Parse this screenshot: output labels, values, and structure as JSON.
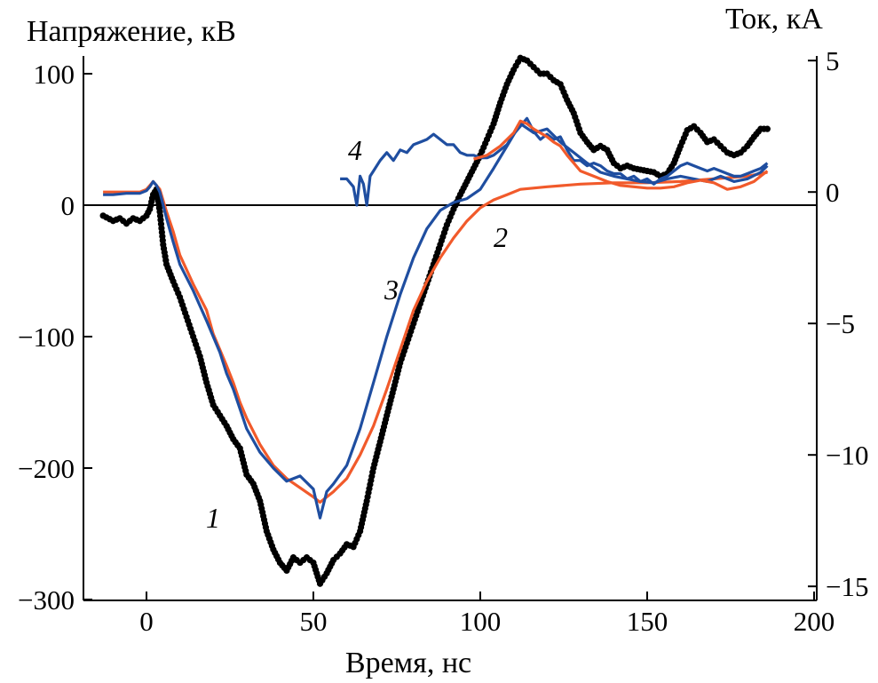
{
  "chart_data": {
    "type": "line",
    "xlabel": "Время, нс",
    "ylabel_left": "Напряжение, кВ",
    "ylabel_right": "Ток, кА",
    "x_ticks": [
      "0",
      "50",
      "100",
      "150",
      "200"
    ],
    "y_left_ticks": [
      "100",
      "0",
      "−100",
      "−200",
      "−300"
    ],
    "y_right_ticks": [
      "5",
      "0",
      "−5",
      "−10",
      "−15"
    ],
    "xlim": [
      -18,
      200
    ],
    "ylim_left": [
      -300,
      110
    ],
    "ylim_right": [
      -15,
      5
    ],
    "right_axis_mapping": {
      "left_at_right_zero": 10,
      "left_per_right_unit": 20
    },
    "zero_line": 0,
    "grid": false,
    "series": [
      {
        "label": "1",
        "axis": "left",
        "color": "#000000",
        "style": "dots",
        "points": [
          [
            -13,
            -8
          ],
          [
            -10,
            -12
          ],
          [
            -8,
            -10
          ],
          [
            -6,
            -14
          ],
          [
            -4,
            -10
          ],
          [
            -2,
            -12
          ],
          [
            0,
            -8
          ],
          [
            1,
            -3
          ],
          [
            2,
            8
          ],
          [
            3,
            12
          ],
          [
            4,
            -5
          ],
          [
            5,
            -30
          ],
          [
            6,
            -45
          ],
          [
            8,
            -58
          ],
          [
            10,
            -70
          ],
          [
            12,
            -85
          ],
          [
            14,
            -100
          ],
          [
            16,
            -115
          ],
          [
            18,
            -135
          ],
          [
            20,
            -152
          ],
          [
            22,
            -160
          ],
          [
            24,
            -168
          ],
          [
            26,
            -178
          ],
          [
            28,
            -185
          ],
          [
            30,
            -205
          ],
          [
            32,
            -212
          ],
          [
            34,
            -225
          ],
          [
            36,
            -248
          ],
          [
            38,
            -262
          ],
          [
            40,
            -272
          ],
          [
            42,
            -278
          ],
          [
            44,
            -268
          ],
          [
            46,
            -272
          ],
          [
            48,
            -268
          ],
          [
            50,
            -272
          ],
          [
            52,
            -288
          ],
          [
            54,
            -280
          ],
          [
            56,
            -270
          ],
          [
            58,
            -265
          ],
          [
            60,
            -258
          ],
          [
            62,
            -260
          ],
          [
            64,
            -248
          ],
          [
            66,
            -225
          ],
          [
            68,
            -200
          ],
          [
            70,
            -180
          ],
          [
            72,
            -160
          ],
          [
            74,
            -140
          ],
          [
            76,
            -120
          ],
          [
            78,
            -105
          ],
          [
            80,
            -90
          ],
          [
            82,
            -75
          ],
          [
            84,
            -60
          ],
          [
            86,
            -45
          ],
          [
            88,
            -30
          ],
          [
            90,
            -15
          ],
          [
            92,
            -3
          ],
          [
            94,
            8
          ],
          [
            96,
            18
          ],
          [
            98,
            28
          ],
          [
            100,
            38
          ],
          [
            102,
            50
          ],
          [
            104,
            62
          ],
          [
            106,
            78
          ],
          [
            108,
            92
          ],
          [
            110,
            103
          ],
          [
            112,
            112
          ],
          [
            114,
            110
          ],
          [
            116,
            105
          ],
          [
            118,
            100
          ],
          [
            120,
            100
          ],
          [
            122,
            95
          ],
          [
            124,
            92
          ],
          [
            126,
            80
          ],
          [
            128,
            70
          ],
          [
            130,
            55
          ],
          [
            132,
            48
          ],
          [
            134,
            42
          ],
          [
            136,
            45
          ],
          [
            138,
            42
          ],
          [
            140,
            32
          ],
          [
            142,
            28
          ],
          [
            144,
            30
          ],
          [
            146,
            28
          ],
          [
            148,
            27
          ],
          [
            150,
            26
          ],
          [
            152,
            25
          ],
          [
            154,
            22
          ],
          [
            156,
            24
          ],
          [
            158,
            32
          ],
          [
            160,
            45
          ],
          [
            162,
            57
          ],
          [
            164,
            60
          ],
          [
            166,
            55
          ],
          [
            168,
            48
          ],
          [
            170,
            50
          ],
          [
            172,
            45
          ],
          [
            174,
            40
          ],
          [
            176,
            38
          ],
          [
            178,
            40
          ],
          [
            180,
            45
          ],
          [
            182,
            52
          ],
          [
            184,
            58
          ],
          [
            186,
            58
          ]
        ]
      },
      {
        "label": "2",
        "axis": "left",
        "color": "#f15a2b",
        "style": "line",
        "points": [
          [
            -13,
            10
          ],
          [
            -10,
            10
          ],
          [
            -6,
            10
          ],
          [
            -2,
            10
          ],
          [
            0,
            12
          ],
          [
            1,
            15
          ],
          [
            2,
            18
          ],
          [
            3,
            15
          ],
          [
            4,
            12
          ],
          [
            6,
            -5
          ],
          [
            8,
            -20
          ],
          [
            10,
            -38
          ],
          [
            14,
            -60
          ],
          [
            18,
            -80
          ],
          [
            20,
            -98
          ],
          [
            22,
            -110
          ],
          [
            24,
            -122
          ],
          [
            26,
            -135
          ],
          [
            28,
            -150
          ],
          [
            30,
            -162
          ],
          [
            34,
            -182
          ],
          [
            38,
            -198
          ],
          [
            42,
            -208
          ],
          [
            46,
            -215
          ],
          [
            50,
            -222
          ],
          [
            52,
            -226
          ],
          [
            56,
            -218
          ],
          [
            60,
            -208
          ],
          [
            64,
            -190
          ],
          [
            68,
            -168
          ],
          [
            72,
            -140
          ],
          [
            76,
            -110
          ],
          [
            80,
            -80
          ],
          [
            84,
            -58
          ],
          [
            88,
            -40
          ],
          [
            92,
            -25
          ],
          [
            96,
            -12
          ],
          [
            100,
            -2
          ],
          [
            104,
            4
          ],
          [
            108,
            8
          ],
          [
            112,
            12
          ],
          [
            120,
            14
          ],
          [
            130,
            16
          ],
          [
            140,
            17
          ],
          [
            150,
            17
          ],
          [
            160,
            18
          ],
          [
            170,
            20
          ],
          [
            180,
            22
          ],
          [
            186,
            25
          ]
        ]
      },
      {
        "label": "3",
        "axis": "left",
        "color": "#1f4ea0",
        "style": "line",
        "points": [
          [
            -13,
            8
          ],
          [
            -10,
            8
          ],
          [
            -6,
            9
          ],
          [
            -2,
            9
          ],
          [
            0,
            11
          ],
          [
            1,
            14
          ],
          [
            2,
            18
          ],
          [
            3,
            15
          ],
          [
            4,
            10
          ],
          [
            6,
            -10
          ],
          [
            8,
            -28
          ],
          [
            10,
            -45
          ],
          [
            14,
            -65
          ],
          [
            18,
            -88
          ],
          [
            20,
            -100
          ],
          [
            22,
            -112
          ],
          [
            24,
            -128
          ],
          [
            26,
            -140
          ],
          [
            28,
            -155
          ],
          [
            30,
            -170
          ],
          [
            34,
            -188
          ],
          [
            38,
            -200
          ],
          [
            42,
            -210
          ],
          [
            46,
            -206
          ],
          [
            50,
            -216
          ],
          [
            52,
            -238
          ],
          [
            54,
            -218
          ],
          [
            56,
            -212
          ],
          [
            58,
            -205
          ],
          [
            60,
            -198
          ],
          [
            64,
            -170
          ],
          [
            68,
            -135
          ],
          [
            72,
            -100
          ],
          [
            76,
            -68
          ],
          [
            80,
            -40
          ],
          [
            84,
            -18
          ],
          [
            88,
            -4
          ],
          [
            92,
            2
          ],
          [
            96,
            5
          ],
          [
            100,
            12
          ],
          [
            104,
            28
          ],
          [
            108,
            45
          ],
          [
            112,
            62
          ],
          [
            116,
            55
          ],
          [
            120,
            58
          ],
          [
            124,
            48
          ],
          [
            128,
            40
          ],
          [
            132,
            32
          ],
          [
            136,
            25
          ],
          [
            140,
            22
          ],
          [
            144,
            20
          ],
          [
            148,
            18
          ],
          [
            152,
            17
          ],
          [
            156,
            20
          ],
          [
            160,
            22
          ],
          [
            164,
            20
          ],
          [
            168,
            18
          ],
          [
            172,
            22
          ],
          [
            176,
            18
          ],
          [
            180,
            20
          ],
          [
            184,
            25
          ],
          [
            186,
            30
          ]
        ]
      },
      {
        "label": "4",
        "axis": "right",
        "color": "#1f4ea0",
        "style": "line",
        "points": [
          [
            58,
            0.5
          ],
          [
            60,
            0.5
          ],
          [
            62,
            0.2
          ],
          [
            63,
            -0.5
          ],
          [
            64,
            0.6
          ],
          [
            65,
            0.3
          ],
          [
            66,
            -0.5
          ],
          [
            67,
            0.6
          ],
          [
            68,
            0.8
          ],
          [
            70,
            1.2
          ],
          [
            72,
            1.5
          ],
          [
            74,
            1.2
          ],
          [
            76,
            1.6
          ],
          [
            78,
            1.5
          ],
          [
            80,
            1.8
          ],
          [
            82,
            1.9
          ],
          [
            84,
            2.0
          ],
          [
            86,
            2.2
          ],
          [
            88,
            2.0
          ],
          [
            90,
            1.8
          ],
          [
            92,
            1.8
          ],
          [
            94,
            1.5
          ],
          [
            96,
            1.4
          ],
          [
            98,
            1.4
          ],
          [
            100,
            1.3
          ],
          [
            102,
            1.3
          ],
          [
            104,
            1.4
          ],
          [
            106,
            1.6
          ],
          [
            108,
            1.8
          ],
          [
            110,
            2.2
          ],
          [
            112,
            2.5
          ],
          [
            114,
            2.8
          ],
          [
            116,
            2.3
          ],
          [
            118,
            2.0
          ],
          [
            120,
            2.2
          ],
          [
            122,
            2.0
          ],
          [
            124,
            2.1
          ],
          [
            126,
            1.6
          ],
          [
            128,
            1.2
          ],
          [
            130,
            1.2
          ],
          [
            132,
            1.0
          ],
          [
            134,
            1.1
          ],
          [
            136,
            1.0
          ],
          [
            138,
            0.8
          ],
          [
            140,
            0.7
          ],
          [
            142,
            0.7
          ],
          [
            144,
            0.5
          ],
          [
            146,
            0.6
          ],
          [
            148,
            0.4
          ],
          [
            150,
            0.5
          ],
          [
            152,
            0.3
          ],
          [
            154,
            0.5
          ],
          [
            156,
            0.6
          ],
          [
            158,
            0.8
          ],
          [
            160,
            1.0
          ],
          [
            162,
            1.1
          ],
          [
            164,
            1.0
          ],
          [
            166,
            0.9
          ],
          [
            168,
            0.8
          ],
          [
            170,
            0.9
          ],
          [
            172,
            0.8
          ],
          [
            174,
            0.7
          ],
          [
            176,
            0.6
          ],
          [
            178,
            0.6
          ],
          [
            180,
            0.7
          ],
          [
            182,
            0.8
          ],
          [
            184,
            0.9
          ],
          [
            186,
            1.1
          ]
        ]
      },
      {
        "label": "",
        "axis": "left",
        "color": "#f15a2b",
        "style": "line",
        "points": [
          [
            98,
            35
          ],
          [
            102,
            38
          ],
          [
            106,
            45
          ],
          [
            110,
            55
          ],
          [
            112,
            64
          ],
          [
            114,
            62
          ],
          [
            116,
            58
          ],
          [
            118,
            55
          ],
          [
            120,
            52
          ],
          [
            122,
            48
          ],
          [
            124,
            45
          ],
          [
            126,
            38
          ],
          [
            128,
            32
          ],
          [
            130,
            26
          ],
          [
            134,
            22
          ],
          [
            138,
            18
          ],
          [
            142,
            15
          ],
          [
            146,
            14
          ],
          [
            150,
            13
          ],
          [
            154,
            13
          ],
          [
            158,
            14
          ],
          [
            162,
            17
          ],
          [
            166,
            19
          ],
          [
            170,
            17
          ],
          [
            174,
            12
          ],
          [
            178,
            14
          ],
          [
            182,
            18
          ],
          [
            184,
            22
          ],
          [
            186,
            26
          ]
        ]
      }
    ]
  }
}
